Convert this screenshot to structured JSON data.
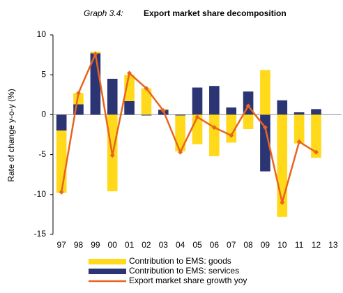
{
  "chart_data": {
    "type": "bar",
    "title_prefix": "Graph 3.4:",
    "title": "Export market share decomposition",
    "ylabel": "Rate of change y-o-y (%)",
    "categories": [
      "97",
      "98",
      "99",
      "00",
      "01",
      "02",
      "03",
      "04",
      "05",
      "06",
      "07",
      "08",
      "09",
      "10",
      "11",
      "12",
      "13"
    ],
    "series": [
      {
        "name": "Contribution to EMS: goods",
        "type": "bar",
        "color": "#ffd91a",
        "values": [
          -7.8,
          1.4,
          0.2,
          -9.6,
          3.3,
          3.3,
          0.1,
          -4.5,
          -3.7,
          -5.2,
          -3.5,
          -1.8,
          5.6,
          -12.8,
          -3.6,
          -5.4,
          null
        ]
      },
      {
        "name": "Contribution to EMS: services",
        "type": "bar",
        "color": "#2b3574",
        "values": [
          -2.0,
          1.3,
          7.7,
          4.5,
          1.7,
          -0.1,
          0.6,
          -0.1,
          3.4,
          3.6,
          0.9,
          2.9,
          -7.1,
          1.8,
          0.3,
          0.7,
          null
        ]
      },
      {
        "name": "Export market share growth yoy",
        "type": "line",
        "color": "#e8641e",
        "values": [
          -9.7,
          2.7,
          7.6,
          -5.1,
          5.2,
          3.3,
          0.5,
          -4.7,
          -0.3,
          -1.6,
          -2.6,
          1.1,
          -1.6,
          -11.0,
          -3.4,
          -4.7,
          null
        ]
      }
    ],
    "ylim": [
      -15,
      10
    ],
    "yticks": [
      10,
      5,
      0,
      -5,
      -10,
      -15
    ],
    "grid": false,
    "legend": "bottom"
  }
}
